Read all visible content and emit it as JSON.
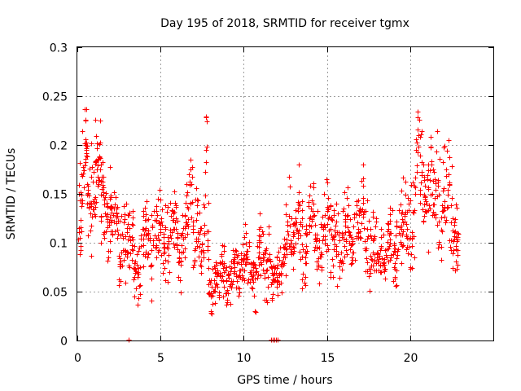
{
  "chart_data": {
    "type": "scatter",
    "title": "Day 195 of 2018, SRMTID for receiver tgmx",
    "xlabel": "GPS time / hours",
    "ylabel": "SRMTID / TECUs",
    "xlim": [
      0,
      25
    ],
    "ylim": [
      0,
      0.3
    ],
    "x_ticks": [
      0,
      5,
      10,
      15,
      20
    ],
    "x_tick_labels": [
      "0",
      "5",
      "10",
      "15",
      "20"
    ],
    "y_ticks": [
      0,
      0.05,
      0.1,
      0.15,
      0.2,
      0.25,
      0.3
    ],
    "y_tick_labels": [
      "0",
      "0.05",
      "0.1",
      "0.15",
      "0.2",
      "0.25",
      "0.3"
    ],
    "grid": true,
    "marker": "+",
    "colors": {
      "series": "#ff0000",
      "grid": "#a0a0a0",
      "axis": "#000000"
    },
    "series": [
      {
        "name": "SRMTID",
        "x": [
          0.05,
          0.2,
          0.35,
          0.5,
          0.65,
          0.8,
          0.95,
          1.1,
          1.25,
          1.4,
          1.55,
          1.7,
          1.85,
          2.0,
          2.2,
          2.4,
          2.6,
          2.8,
          3.0,
          3.2,
          3.4,
          3.6,
          3.8,
          4.0,
          4.2,
          4.4,
          4.6,
          4.8,
          5.0,
          5.2,
          5.4,
          5.6,
          5.8,
          6.0,
          6.2,
          6.4,
          6.6,
          6.8,
          7.0,
          7.2,
          7.4,
          7.6,
          7.75,
          7.9,
          8.1,
          8.3,
          8.5,
          8.7,
          8.9,
          9.1,
          9.3,
          9.5,
          9.7,
          9.9,
          10.1,
          10.3,
          10.5,
          10.7,
          10.9,
          11.1,
          11.3,
          11.5,
          11.7,
          11.9,
          12.1,
          12.3,
          12.5,
          12.7,
          12.9,
          13.1,
          13.3,
          13.5,
          13.7,
          13.9,
          14.1,
          14.3,
          14.5,
          14.7,
          14.9,
          15.1,
          15.3,
          15.5,
          15.7,
          15.9,
          16.1,
          16.3,
          16.5,
          16.7,
          16.9,
          17.1,
          17.3,
          17.5,
          17.7,
          17.9,
          18.1,
          18.3,
          18.5,
          18.7,
          18.9,
          19.1,
          19.3,
          19.5,
          19.7,
          19.9,
          20.1,
          20.3,
          20.5,
          20.7,
          20.9,
          21.1,
          21.3,
          21.5,
          21.7,
          21.9,
          22.1,
          22.3,
          22.5,
          22.7,
          22.85
        ],
        "y": [
          0.12,
          0.15,
          0.17,
          0.22,
          0.14,
          0.13,
          0.16,
          0.18,
          0.19,
          0.17,
          0.15,
          0.12,
          0.1,
          0.14,
          0.13,
          0.12,
          0.09,
          0.11,
          0.1,
          0.12,
          0.08,
          0.07,
          0.09,
          0.1,
          0.12,
          0.08,
          0.1,
          0.11,
          0.12,
          0.1,
          0.09,
          0.11,
          0.13,
          0.1,
          0.08,
          0.12,
          0.14,
          0.16,
          0.1,
          0.12,
          0.09,
          0.11,
          0.2,
          0.06,
          0.05,
          0.07,
          0.06,
          0.08,
          0.05,
          0.06,
          0.07,
          0.08,
          0.06,
          0.07,
          0.09,
          0.08,
          0.07,
          0.06,
          0.1,
          0.08,
          0.07,
          0.09,
          0.06,
          0.07,
          0.08,
          0.07,
          0.1,
          0.12,
          0.09,
          0.11,
          0.13,
          0.1,
          0.09,
          0.12,
          0.14,
          0.1,
          0.09,
          0.11,
          0.12,
          0.13,
          0.1,
          0.12,
          0.11,
          0.09,
          0.12,
          0.13,
          0.1,
          0.11,
          0.12,
          0.14,
          0.11,
          0.1,
          0.09,
          0.1,
          0.08,
          0.09,
          0.07,
          0.11,
          0.1,
          0.08,
          0.09,
          0.12,
          0.13,
          0.12,
          0.1,
          0.15,
          0.22,
          0.17,
          0.14,
          0.16,
          0.15,
          0.17,
          0.14,
          0.13,
          0.18,
          0.16,
          0.12,
          0.1,
          0.09
        ],
        "spread": [
          0.045,
          0.05,
          0.05,
          0.04,
          0.04,
          0.04,
          0.04,
          0.035,
          0.035,
          0.035,
          0.035,
          0.03,
          0.03,
          0.03,
          0.03,
          0.03,
          0.03,
          0.03,
          0.03,
          0.03,
          0.03,
          0.03,
          0.03,
          0.03,
          0.03,
          0.03,
          0.03,
          0.03,
          0.03,
          0.03,
          0.03,
          0.03,
          0.03,
          0.03,
          0.03,
          0.03,
          0.03,
          0.03,
          0.03,
          0.03,
          0.03,
          0.03,
          0.06,
          0.02,
          0.02,
          0.02,
          0.02,
          0.02,
          0.02,
          0.02,
          0.02,
          0.02,
          0.02,
          0.02,
          0.02,
          0.02,
          0.02,
          0.02,
          0.025,
          0.025,
          0.025,
          0.025,
          0.02,
          0.02,
          0.02,
          0.025,
          0.03,
          0.03,
          0.03,
          0.03,
          0.03,
          0.03,
          0.03,
          0.035,
          0.035,
          0.03,
          0.03,
          0.03,
          0.03,
          0.03,
          0.03,
          0.03,
          0.03,
          0.03,
          0.03,
          0.03,
          0.03,
          0.03,
          0.035,
          0.035,
          0.03,
          0.03,
          0.03,
          0.03,
          0.025,
          0.025,
          0.025,
          0.03,
          0.03,
          0.03,
          0.03,
          0.03,
          0.035,
          0.035,
          0.035,
          0.04,
          0.045,
          0.04,
          0.04,
          0.04,
          0.04,
          0.04,
          0.04,
          0.04,
          0.045,
          0.04,
          0.035,
          0.035,
          0.03
        ],
        "zero_points_x": [
          3.1,
          11.65,
          11.75,
          11.85,
          11.95,
          12.05
        ]
      }
    ]
  }
}
